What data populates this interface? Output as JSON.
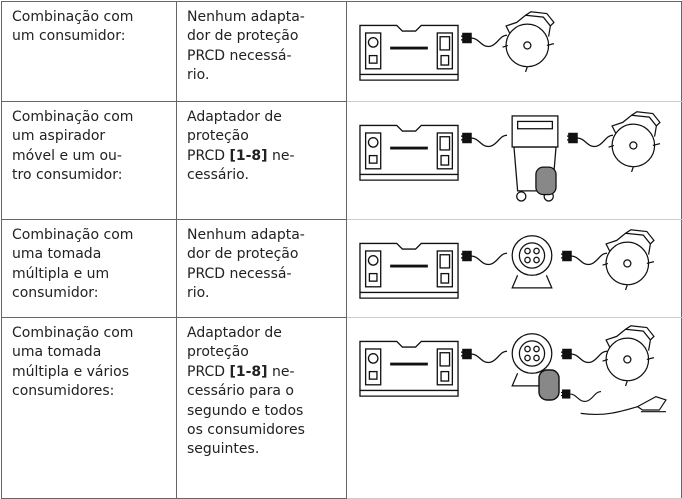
{
  "table": {
    "rows": [
      {
        "condition": [
          "Combinação com",
          "um consumidor:"
        ],
        "requirement": [
          "Nenhum adapta-",
          "dor de proteção",
          "PRCD necessá-",
          "rio."
        ]
      },
      {
        "condition": [
          "Combinação com",
          "um aspirador",
          "móvel e um ou-",
          "tro consumidor:"
        ],
        "requirement": [
          "Adaptador de",
          "proteção",
          [
            {
              "text": "PRCD ",
              "bold": false
            },
            {
              "text": "[1-8]",
              "bold": true
            },
            {
              "text": " ne-",
              "bold": false
            }
          ],
          "cessário."
        ]
      },
      {
        "condition": [
          "Combinação com",
          "uma tomada",
          "múltipla e um",
          "consumidor:"
        ],
        "requirement": [
          "Nenhum adapta-",
          "dor de proteção",
          "PRCD necessá-",
          "rio."
        ]
      },
      {
        "condition": [
          "Combinação com",
          "uma tomada",
          "múltipla e vários",
          "consumidores:"
        ],
        "requirement": [
          "Adaptador de",
          "proteção",
          [
            {
              "text": "PRCD ",
              "bold": false
            },
            {
              "text": "[1-8]",
              "bold": true
            },
            {
              "text": " ne-",
              "bold": false
            }
          ],
          "cessário para o",
          "segundo e todos",
          "os consumidores",
          "seguintes."
        ]
      }
    ]
  }
}
